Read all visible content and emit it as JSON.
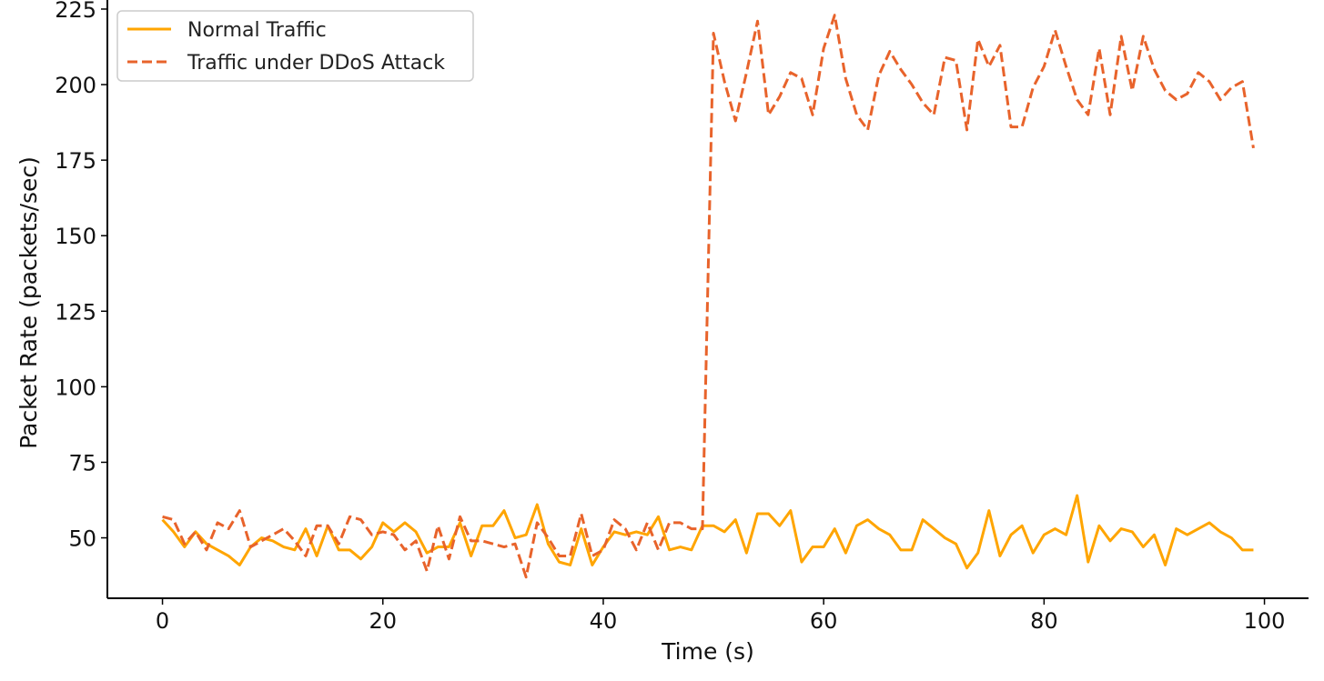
{
  "chart_data": {
    "type": "line",
    "title": "",
    "xlabel": "Time (s)",
    "ylabel": "Packet Rate (packets/sec)",
    "xlim": [
      -5,
      104
    ],
    "ylim": [
      30,
      228
    ],
    "xticks": [
      0,
      20,
      40,
      60,
      80,
      100
    ],
    "yticks": [
      50,
      75,
      100,
      125,
      150,
      175,
      200,
      225
    ],
    "grid": false,
    "legend_position": "top-left",
    "x": [
      0,
      1,
      2,
      3,
      4,
      5,
      6,
      7,
      8,
      9,
      10,
      11,
      12,
      13,
      14,
      15,
      16,
      17,
      18,
      19,
      20,
      21,
      22,
      23,
      24,
      25,
      26,
      27,
      28,
      29,
      30,
      31,
      32,
      33,
      34,
      35,
      36,
      37,
      38,
      39,
      40,
      41,
      42,
      43,
      44,
      45,
      46,
      47,
      48,
      49,
      50,
      51,
      52,
      53,
      54,
      55,
      56,
      57,
      58,
      59,
      60,
      61,
      62,
      63,
      64,
      65,
      66,
      67,
      68,
      69,
      70,
      71,
      72,
      73,
      74,
      75,
      76,
      77,
      78,
      79,
      80,
      81,
      82,
      83,
      84,
      85,
      86,
      87,
      88,
      89,
      90,
      91,
      92,
      93,
      94,
      95,
      96,
      97,
      98,
      99
    ],
    "series": [
      {
        "name": "Normal Traffic",
        "color": "#FFA500",
        "style": "solid",
        "values": [
          56,
          52,
          47,
          52,
          48,
          46,
          44,
          41,
          47,
          50,
          49,
          47,
          46,
          53,
          44,
          54,
          46,
          46,
          43,
          47,
          55,
          52,
          55,
          52,
          45,
          47,
          47,
          55,
          44,
          54,
          54,
          59,
          50,
          51,
          61,
          48,
          42,
          41,
          53,
          41,
          47,
          52,
          51,
          52,
          51,
          57,
          46,
          47,
          46,
          54,
          54,
          52,
          56,
          45,
          58,
          58,
          54,
          59,
          42,
          47,
          47,
          53,
          45,
          54,
          56,
          53,
          51,
          46,
          46,
          56,
          53,
          50,
          48,
          40,
          45,
          59,
          44,
          51,
          54,
          45,
          51,
          53,
          51,
          64,
          42,
          54,
          49,
          53,
          52,
          47,
          51,
          41,
          53,
          51,
          53,
          55,
          52,
          50,
          46,
          46
        ]
      },
      {
        "name": "Traffic under DDoS Attack",
        "color": "#E8632B",
        "style": "dashed",
        "values": [
          57,
          56,
          48,
          52,
          46,
          55,
          53,
          59,
          47,
          49,
          51,
          53,
          49,
          44,
          54,
          54,
          48,
          57,
          56,
          51,
          52,
          51,
          46,
          49,
          39,
          54,
          43,
          57,
          49,
          49,
          48,
          47,
          48,
          37,
          55,
          50,
          44,
          44,
          58,
          44,
          46,
          56,
          53,
          46,
          55,
          46,
          55,
          55,
          53,
          53,
          217,
          201,
          188,
          204,
          221,
          190,
          196,
          204,
          202,
          190,
          212,
          223,
          202,
          190,
          185,
          203,
          211,
          205,
          200,
          194,
          190,
          209,
          208,
          185,
          215,
          206,
          213,
          186,
          186,
          199,
          206,
          218,
          206,
          195,
          190,
          212,
          190,
          216,
          198,
          216,
          205,
          198,
          195,
          197,
          204,
          201,
          195,
          199,
          201,
          179
        ]
      }
    ]
  }
}
